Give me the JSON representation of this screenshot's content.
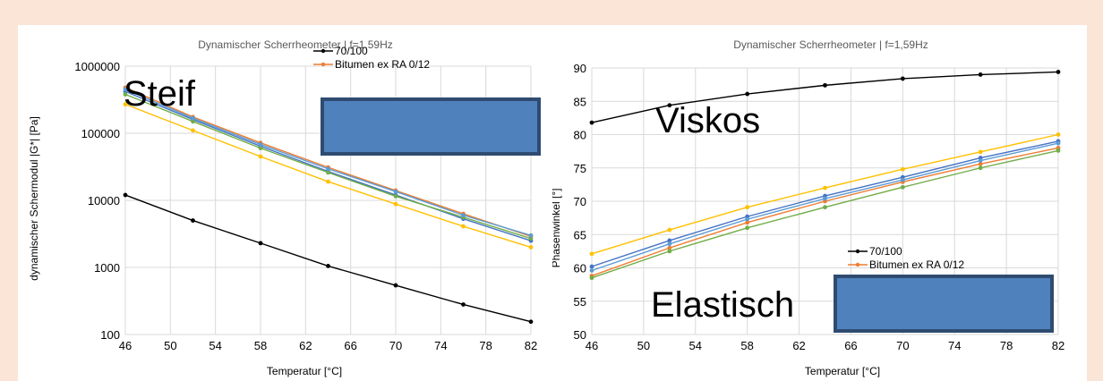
{
  "colors": {
    "background": "#fbe5d6",
    "panel": "#ffffff",
    "overlay_box_fill": "#4f81bd",
    "overlay_box_border": "#2f4b70",
    "series": [
      "#000000",
      "#ed7d31",
      "#4472c4",
      "#70ad47",
      "#ffc000",
      "#5b9bd5"
    ]
  },
  "chart_data": [
    {
      "type": "line",
      "title": "Dynamischer Scherrheometer | f=1,59Hz",
      "xlabel": "Temperatur [°C]",
      "ylabel": "dynamischer Schermodul |G*| [Pa]",
      "annotation": "Steif",
      "y_scale": "log",
      "xlim": [
        46,
        82
      ],
      "ylim": [
        100,
        1000000
      ],
      "x_ticks": [
        "46",
        "50",
        "54",
        "58",
        "62",
        "66",
        "70",
        "74",
        "78",
        "82"
      ],
      "y_ticks": [
        "100",
        "1000",
        "10000",
        "100000",
        "1000000"
      ],
      "x": [
        46,
        52,
        58,
        64,
        70,
        76,
        82
      ],
      "legend_labels": [
        "70/100",
        "Bitumen ex RA 0/12"
      ],
      "legend_position": "top-center",
      "grid": true,
      "series": [
        {
          "name": "70/100",
          "values": [
            12000,
            5000,
            2300,
            1050,
            540,
            280,
            155
          ]
        },
        {
          "name": "Bitumen ex RA 0/12",
          "values": [
            480000,
            175000,
            72000,
            31000,
            14000,
            6300,
            2900
          ]
        },
        {
          "values": [
            420000,
            160000,
            64000,
            27000,
            12000,
            5300,
            2500
          ]
        },
        {
          "values": [
            380000,
            150000,
            60000,
            26000,
            11500,
            5600,
            2700
          ]
        },
        {
          "values": [
            270000,
            110000,
            45000,
            19000,
            8800,
            4100,
            2000
          ]
        },
        {
          "values": [
            450000,
            168000,
            68000,
            29500,
            13500,
            6000,
            3000
          ]
        }
      ]
    },
    {
      "type": "line",
      "title": "Dynamischer Scherrheometer | f=1,59Hz",
      "xlabel": "Temperatur [°C]",
      "ylabel": "Phasenwinkel [°]",
      "annotations": [
        "Viskos",
        "Elastisch"
      ],
      "xlim": [
        46,
        82
      ],
      "ylim": [
        50,
        90
      ],
      "x_ticks": [
        "46",
        "50",
        "54",
        "58",
        "62",
        "66",
        "70",
        "74",
        "78",
        "82"
      ],
      "y_ticks": [
        "50",
        "55",
        "60",
        "65",
        "70",
        "75",
        "80",
        "85",
        "90"
      ],
      "x": [
        46,
        52,
        58,
        64,
        70,
        76,
        82
      ],
      "legend_labels": [
        "70/100",
        "Bitumen ex RA 0/12"
      ],
      "legend_position": "bottom-center",
      "grid": true,
      "series": [
        {
          "name": "70/100",
          "values": [
            81.8,
            84.4,
            86.1,
            87.4,
            88.4,
            89.0,
            89.4
          ]
        },
        {
          "name": "Bitumen ex RA 0/12",
          "values": [
            58.8,
            63.0,
            66.8,
            70.0,
            72.9,
            75.6,
            78.0
          ]
        },
        {
          "values": [
            60.2,
            64.1,
            67.7,
            70.8,
            73.6,
            76.5,
            79.0
          ]
        },
        {
          "values": [
            58.5,
            62.5,
            66.0,
            69.1,
            72.1,
            75.0,
            77.6
          ]
        },
        {
          "values": [
            62.1,
            65.7,
            69.1,
            72.0,
            74.8,
            77.4,
            80.0
          ]
        },
        {
          "values": [
            59.6,
            63.6,
            67.3,
            70.4,
            73.2,
            76.1,
            78.7
          ]
        }
      ]
    }
  ]
}
